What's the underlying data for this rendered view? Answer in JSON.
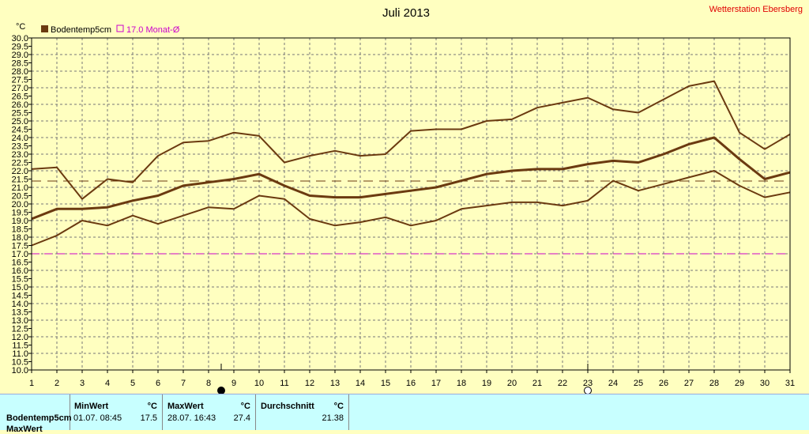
{
  "chart_data": {
    "type": "line",
    "title": "Juli 2013",
    "station": "Wetterstation Ebersberg",
    "ylabel": "°C",
    "ylim": [
      10,
      30
    ],
    "ytick_step": 0.5,
    "ytick_labels": [
      "10.0",
      "10.5",
      "11.0",
      "11.5",
      "12.0",
      "12.5",
      "13.0",
      "13.5",
      "14.0",
      "14.5",
      "15.0",
      "15.5",
      "16.0",
      "16.5",
      "17.0",
      "17.5",
      "18.0",
      "18.5",
      "19.0",
      "19.5",
      "20.0",
      "20.5",
      "21.0",
      "21.5",
      "22.0",
      "22.5",
      "23.0",
      "23.5",
      "24.0",
      "24.5",
      "25.0",
      "25.5",
      "26.0",
      "26.5",
      "27.0",
      "27.5",
      "28.0",
      "28.5",
      "29.0",
      "29.5",
      "30.0"
    ],
    "x": [
      1,
      2,
      3,
      4,
      5,
      6,
      7,
      8,
      9,
      10,
      11,
      12,
      13,
      14,
      15,
      16,
      17,
      18,
      19,
      20,
      21,
      22,
      23,
      24,
      25,
      26,
      27,
      28,
      29,
      30,
      31
    ],
    "xlim": [
      1,
      31
    ],
    "grid": true,
    "legend": [
      {
        "label": "Bodentemp5cm",
        "color": "#6b3a10"
      },
      {
        "label": "17.0 Monat-Ø",
        "color": "#cc00cc"
      }
    ],
    "series": [
      {
        "name": "Bodentemp5cm",
        "role": "mean",
        "values": [
          19.1,
          19.7,
          19.7,
          19.8,
          20.2,
          20.5,
          21.1,
          21.3,
          21.5,
          21.8,
          21.1,
          20.5,
          20.4,
          20.4,
          20.6,
          20.8,
          21.0,
          21.4,
          21.8,
          22.0,
          22.1,
          22.1,
          22.4,
          22.6,
          22.5,
          23.0,
          23.6,
          24.0,
          22.7,
          21.5,
          21.9
        ]
      },
      {
        "role": "max",
        "values": [
          22.1,
          22.2,
          20.3,
          21.5,
          21.3,
          22.9,
          23.7,
          23.8,
          24.3,
          24.1,
          22.5,
          22.9,
          23.2,
          22.9,
          23.0,
          24.4,
          24.5,
          24.5,
          25.0,
          25.1,
          25.8,
          26.1,
          26.4,
          25.7,
          25.5,
          26.3,
          27.1,
          27.4,
          24.3,
          23.3,
          24.2
        ]
      },
      {
        "role": "min",
        "values": [
          17.5,
          18.1,
          19.0,
          18.7,
          19.3,
          18.8,
          19.3,
          19.8,
          19.7,
          20.5,
          20.3,
          19.1,
          18.7,
          18.9,
          19.2,
          18.7,
          19.0,
          19.7,
          19.9,
          20.1,
          20.1,
          19.9,
          20.2,
          21.4,
          20.8,
          21.2,
          21.6,
          22.0,
          21.1,
          20.4,
          20.7
        ]
      }
    ],
    "reference_lines": [
      {
        "value": 17.0,
        "color": "#cc00cc"
      },
      {
        "value": 21.38,
        "color": "#6b3a10"
      }
    ],
    "moon_markers": [
      {
        "day": 8.5,
        "phase": "new-moon"
      },
      {
        "day": 23,
        "phase": "full-moon"
      }
    ]
  },
  "stats": {
    "row_label": "Bodentemp5cm",
    "next_row_label": "MaxWert",
    "min_header": "MinWert",
    "max_header": "MaxWert",
    "avg_header": "Durchschnitt",
    "unit": "°C",
    "min_time": "01.07.  08:45",
    "min_value": "17.5",
    "max_time": "28.07.  16:43",
    "max_value": "27.4",
    "avg_value": "21.38"
  }
}
